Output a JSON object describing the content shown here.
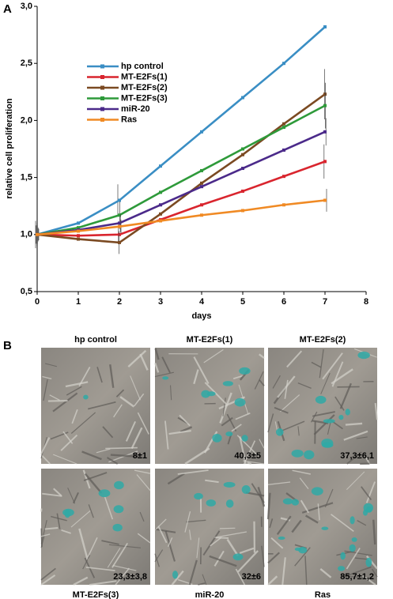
{
  "panel_a_label": "A",
  "chart_data": {
    "type": "line",
    "x_label": "days",
    "y_label": "relative cell proliferation",
    "x": [
      0,
      1,
      2,
      3,
      4,
      5,
      6,
      7
    ],
    "xlim": [
      0,
      8
    ],
    "xticks": [
      0,
      1,
      2,
      3,
      4,
      5,
      6,
      7,
      8
    ],
    "ylim": [
      0.5,
      3.0
    ],
    "yticks": [
      {
        "value": 0.5,
        "label": "0,5"
      },
      {
        "value": 1.0,
        "label": "1,0"
      },
      {
        "value": 1.5,
        "label": "1,5"
      },
      {
        "value": 2.0,
        "label": "2,0"
      },
      {
        "value": 2.5,
        "label": "2,5"
      },
      {
        "value": 3.0,
        "label": "3,0"
      }
    ],
    "series": [
      {
        "name": "hp control",
        "color": "#3a8ec4",
        "values": [
          1.0,
          1.1,
          1.3,
          1.6,
          1.9,
          2.2,
          2.5,
          2.82
        ],
        "errors": [
          0.12,
          null,
          0.14,
          null,
          null,
          null,
          null,
          null
        ]
      },
      {
        "name": "MT-E2Fs(1)",
        "color": "#d9252e",
        "values": [
          1.0,
          0.99,
          1.0,
          1.13,
          1.26,
          1.38,
          1.51,
          1.64
        ],
        "errors": [
          0.08,
          null,
          0.08,
          null,
          null,
          null,
          null,
          0.15
        ]
      },
      {
        "name": "MT-E2Fs(2)",
        "color": "#7b4a22",
        "values": [
          1.0,
          0.96,
          0.93,
          1.18,
          1.45,
          1.7,
          1.97,
          2.23
        ],
        "errors": [
          0.1,
          null,
          0.1,
          null,
          null,
          null,
          null,
          0.22
        ]
      },
      {
        "name": "MT-E2Fs(3)",
        "color": "#2e9a3a",
        "values": [
          1.0,
          1.06,
          1.17,
          1.37,
          1.56,
          1.75,
          1.94,
          2.13
        ],
        "errors": [
          0.08,
          null,
          0.12,
          null,
          null,
          null,
          null,
          0.2
        ]
      },
      {
        "name": "miR-20",
        "color": "#4b2a8a",
        "values": [
          1.0,
          1.04,
          1.1,
          1.26,
          1.42,
          1.58,
          1.74,
          1.9
        ],
        "errors": [
          0.06,
          null,
          0.08,
          null,
          null,
          null,
          null,
          0.12
        ]
      },
      {
        "name": "Ras",
        "color": "#f08a24",
        "values": [
          1.0,
          1.03,
          1.07,
          1.12,
          1.17,
          1.21,
          1.26,
          1.3
        ],
        "errors": [
          0.05,
          null,
          0.06,
          null,
          null,
          null,
          null,
          0.1
        ]
      }
    ]
  },
  "panel_b": {
    "label": "B",
    "images": [
      {
        "title": "hp control",
        "value": "8±1"
      },
      {
        "title": "MT-E2Fs(1)",
        "value": "40,3±5"
      },
      {
        "title": "MT-E2Fs(2)",
        "value": "37,3±6,1"
      },
      {
        "title": "MT-E2Fs(3)",
        "value": "23,3±3,8"
      },
      {
        "title": "miR-20",
        "value": "32±6"
      },
      {
        "title": "Ras",
        "value": "85,7±1,2"
      }
    ]
  }
}
